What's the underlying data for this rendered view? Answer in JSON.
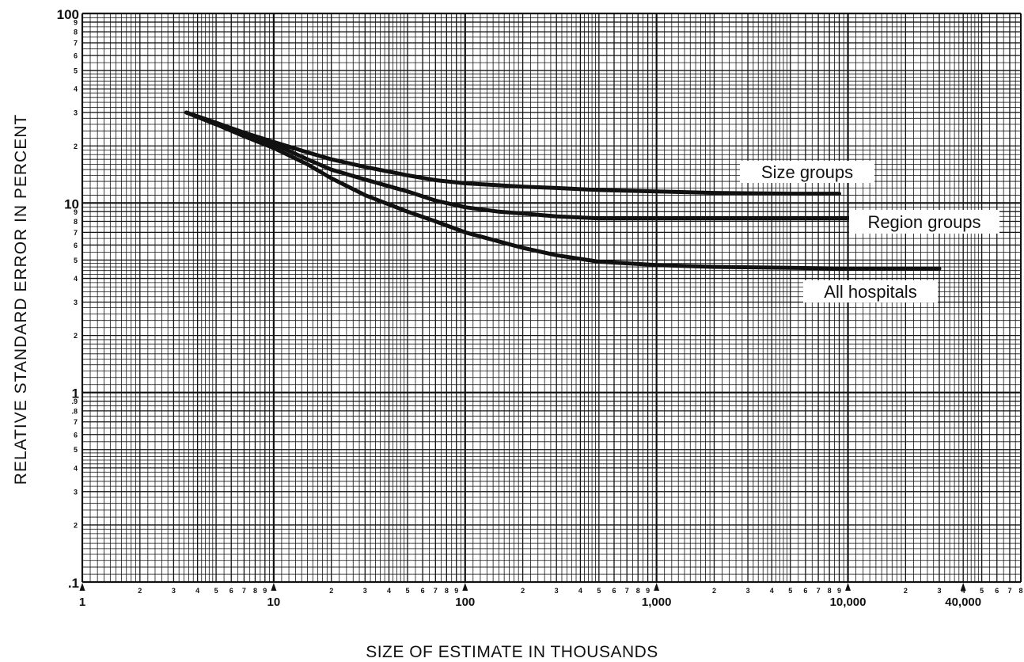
{
  "chart_data": {
    "type": "line",
    "xscale": "log",
    "yscale": "log",
    "xlim": [
      1,
      80000
    ],
    "ylim": [
      0.1,
      100
    ],
    "xlabel": "SIZE OF ESTIMATE IN THOUSANDS",
    "ylabel": "RELATIVE STANDARD ERROR IN PERCENT",
    "grid": true,
    "x_ticks_major": [
      {
        "v": 1,
        "label": "1"
      },
      {
        "v": 10,
        "label": "10"
      },
      {
        "v": 100,
        "label": "100"
      },
      {
        "v": 1000,
        "label": "1,000"
      },
      {
        "v": 10000,
        "label": "10,000"
      },
      {
        "v": 40000,
        "label": "40,000"
      }
    ],
    "x_minor_digits": [
      "2",
      "3",
      "4",
      "5",
      "6",
      "7",
      "8",
      "9"
    ],
    "y_ticks_major": [
      {
        "v": 100,
        "label": "100"
      },
      {
        "v": 10,
        "label": "10"
      },
      {
        "v": 1,
        "label": "1"
      },
      {
        "v": 0.1,
        "label": ".1"
      }
    ],
    "y_minor_labels": {
      "upper": [
        "2",
        "3",
        "4",
        "5",
        "6",
        "7",
        "8",
        "9"
      ],
      "middle": [
        "2",
        "3",
        "4",
        "5",
        "6",
        "7",
        "8",
        "9"
      ],
      "lower": [
        "2",
        "3",
        "4",
        "5",
        "6",
        "7",
        ".8",
        ".9"
      ]
    },
    "series": [
      {
        "name": "Size groups",
        "x": [
          3.5,
          5,
          7,
          10,
          15,
          20,
          30,
          50,
          70,
          100,
          200,
          300,
          500,
          1000,
          2000,
          5000,
          9000
        ],
        "y": [
          30,
          26.5,
          23.5,
          21,
          18.5,
          17,
          15.5,
          14,
          13.2,
          12.7,
          12.2,
          12,
          11.7,
          11.5,
          11.3,
          11.2,
          11.2
        ]
      },
      {
        "name": "Region groups",
        "x": [
          3.5,
          5,
          7,
          10,
          15,
          20,
          30,
          50,
          70,
          100,
          150,
          200,
          300,
          500,
          1000,
          2000,
          5000,
          10000
        ],
        "y": [
          30,
          26,
          22.5,
          20.5,
          17,
          15,
          13.3,
          11.5,
          10.3,
          9.5,
          9,
          8.8,
          8.5,
          8.3,
          8.3,
          8.3,
          8.3,
          8.3
        ]
      },
      {
        "name": "All hospitals",
        "x": [
          3.5,
          5,
          7,
          10,
          15,
          20,
          30,
          50,
          70,
          100,
          200,
          300,
          500,
          1000,
          2000,
          5000,
          10000,
          30000
        ],
        "y": [
          30,
          26,
          22.5,
          19.5,
          16,
          13.5,
          11,
          9,
          8,
          7,
          5.8,
          5.3,
          4.9,
          4.7,
          4.6,
          4.55,
          4.5,
          4.5
        ]
      }
    ]
  }
}
